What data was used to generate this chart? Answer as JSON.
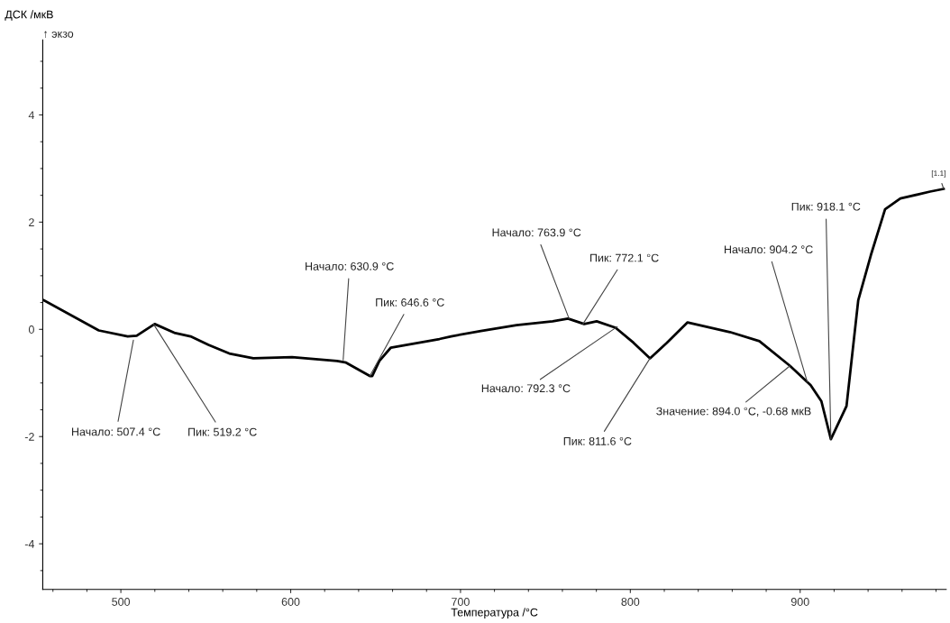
{
  "chart_data": {
    "type": "line",
    "xlabel": "Температура /°C",
    "ylabel": "ДСК /мкВ",
    "x": [
      454.8,
      487,
      504,
      509.3,
      519.9,
      532,
      541,
      551.6,
      563.8,
      578,
      600.8,
      627.3,
      632.6,
      646.6,
      648,
      652.2,
      659,
      668,
      687.6,
      694.5,
      712,
      733,
      754.3,
      763.3,
      772.8,
      780.2,
      791.3,
      801.9,
      811.6,
      821.5,
      833.7,
      858.6,
      876,
      894.0,
      906.2,
      912.5,
      918.1,
      927.3,
      934.2,
      941.6,
      950,
      959,
      976.5,
      984.5
    ],
    "series": [
      {
        "color": "#000000",
        "values": [
          0.54,
          -0.02,
          -0.13,
          -0.12,
          0.1,
          -0.07,
          -0.13,
          -0.29,
          -0.45,
          -0.54,
          -0.52,
          -0.59,
          -0.62,
          -0.87,
          -0.87,
          -0.59,
          -0.34,
          -0.29,
          -0.18,
          -0.13,
          -0.03,
          0.08,
          0.15,
          0.2,
          0.1,
          0.15,
          0.03,
          -0.25,
          -0.54,
          -0.25,
          0.13,
          -0.05,
          -0.22,
          -0.68,
          -1.04,
          -1.34,
          -2.05,
          -1.43,
          0.54,
          1.38,
          2.24,
          2.44,
          2.57,
          2.62
        ]
      }
    ],
    "xlim": [
      454,
      986
    ],
    "ylim": [
      -4.85,
      5.4
    ],
    "xticks": [
      500,
      600,
      700,
      800,
      900
    ],
    "yticks": [
      -4,
      -2,
      0,
      2,
      4
    ],
    "grid": false,
    "marker": "none",
    "line_style": "solid",
    "annotations": [
      "↑ экзо",
      {
        "text": "Начало: 507.4 °C",
        "x": 507.4,
        "y": -0.2
      },
      {
        "text": "Пик: 519.2 °C",
        "x": 519.2,
        "y": 0.1
      },
      {
        "text": "Начало: 630.9 °C",
        "x": 630.9,
        "y": -0.57
      },
      {
        "text": "Пик: 646.6 °C",
        "x": 646.6,
        "y": -0.87
      },
      {
        "text": "Начало: 763.9 °C",
        "x": 763.9,
        "y": 0.2
      },
      {
        "text": "Пик: 772.1 °C",
        "x": 772.1,
        "y": 0.1
      },
      {
        "text": "Начало: 792.3 °C",
        "x": 792.3,
        "y": 0.05
      },
      {
        "text": "Пик: 811.6 °C",
        "x": 811.6,
        "y": -0.54
      },
      {
        "text": "Значение: 894.0 °C, -0.68 мкВ",
        "x": 894.0,
        "y": -0.68
      },
      {
        "text": "Начало: 904.2 °C",
        "x": 904.2,
        "y": -0.98
      },
      {
        "text": "Пик: 918.1 °C",
        "x": 918.1,
        "y": -2.05
      },
      {
        "text": "[1.1]",
        "x": 984.5,
        "y": 2.62
      }
    ]
  }
}
